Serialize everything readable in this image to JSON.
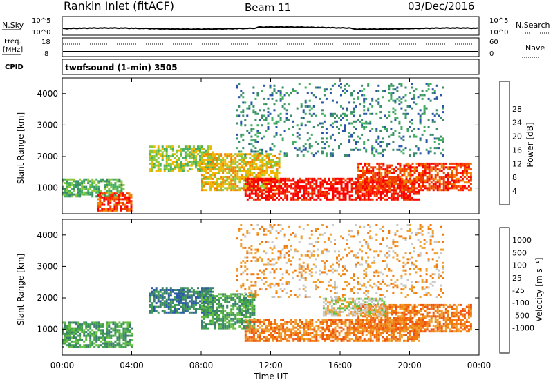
{
  "header": {
    "station": "Rankin Inlet (fitACF)",
    "beam": "Beam 11",
    "date": "03/Dec/2016"
  },
  "sky_panel": {
    "left_label": "N.Sky",
    "left_ticks": [
      "10^5",
      "10^0"
    ],
    "right_ticks": [
      "10^5",
      "10^0"
    ],
    "right_label": "N.Search"
  },
  "freq_panel": {
    "left_label_1": "Freq.",
    "left_label_2": "[MHz]",
    "left_ticks": [
      "18",
      "8"
    ],
    "right_ticks": [
      "60",
      "0"
    ],
    "right_label": "Nave"
  },
  "cpid_panel": {
    "left_label": "CPID",
    "text": "twofsound (1-min) 3505"
  },
  "colors": {
    "power_scale": [
      "#1a1aff",
      "#2956a8",
      "#3a8c6a",
      "#42b060",
      "#8cc83c",
      "#f0b800",
      "#f08000",
      "#f04000",
      "#ff0000"
    ],
    "velocity_scale": [
      "#ff0000",
      "#f05010",
      "#f07a10",
      "#f0a030",
      "#c8c8c8",
      "#66c040",
      "#40a050",
      "#3c7e70",
      "#2a5aa8",
      "#1a2aff"
    ]
  },
  "chart_data": [
    {
      "type": "heatmap",
      "name": "power",
      "xlabel": "",
      "ylabel": "Slant Range [km]",
      "xlim": [
        "00:00",
        "24:00"
      ],
      "ylim": [
        180,
        4500
      ],
      "y_ticks": [
        "1000",
        "2000",
        "3000",
        "4000"
      ],
      "colorbar_label": "Power [dB]",
      "colorbar_ticks": [
        "4",
        "8",
        "12",
        "16",
        "20",
        "24",
        "28"
      ],
      "regions": [
        {
          "t": [
            0.0,
            3.5
          ],
          "r": [
            700,
            1250
          ],
          "level": 3
        },
        {
          "t": [
            2.0,
            4.0
          ],
          "r": [
            250,
            800
          ],
          "level": 7
        },
        {
          "t": [
            5.0,
            8.6
          ],
          "r": [
            1500,
            2300
          ],
          "level": 4
        },
        {
          "t": [
            8.0,
            12.5
          ],
          "r": [
            900,
            2100
          ],
          "level": 5
        },
        {
          "t": [
            10.5,
            20.5
          ],
          "r": [
            600,
            1300
          ],
          "level": 8
        },
        {
          "t": [
            17.0,
            23.5
          ],
          "r": [
            900,
            1800
          ],
          "level": 7
        },
        {
          "t": [
            10.0,
            22.0
          ],
          "r": [
            2000,
            4300
          ],
          "level": 2
        }
      ]
    },
    {
      "type": "heatmap",
      "name": "velocity",
      "xlabel": "Time UT",
      "ylabel": "Slant Range [km]",
      "xlim": [
        "00:00",
        "24:00"
      ],
      "ylim": [
        180,
        4500
      ],
      "x_ticks": [
        "00:00",
        "04:00",
        "08:00",
        "12:00",
        "16:00",
        "20:00",
        "00:00"
      ],
      "y_ticks": [
        "1000",
        "2000",
        "3000",
        "4000"
      ],
      "colorbar_label": "Velocity [m s⁻¹]",
      "colorbar_ticks": [
        "1000",
        "500",
        "100",
        "25",
        "-25",
        "-100",
        "-500",
        "-1000"
      ],
      "regions": [
        {
          "t": [
            0.0,
            4.0
          ],
          "r": [
            400,
            1200
          ],
          "level": 6
        },
        {
          "t": [
            5.0,
            8.6
          ],
          "r": [
            1500,
            2300
          ],
          "level": 7
        },
        {
          "t": [
            8.0,
            11.0
          ],
          "r": [
            1000,
            2100
          ],
          "level": 6
        },
        {
          "t": [
            10.5,
            20.5
          ],
          "r": [
            600,
            1300
          ],
          "level": 2
        },
        {
          "t": [
            17.0,
            23.5
          ],
          "r": [
            900,
            1800
          ],
          "level": 2
        },
        {
          "t": [
            15.0,
            18.5
          ],
          "r": [
            1400,
            2000
          ],
          "level": 4
        },
        {
          "t": [
            10.0,
            22.0
          ],
          "r": [
            2000,
            4300
          ],
          "level": 3
        }
      ]
    }
  ]
}
